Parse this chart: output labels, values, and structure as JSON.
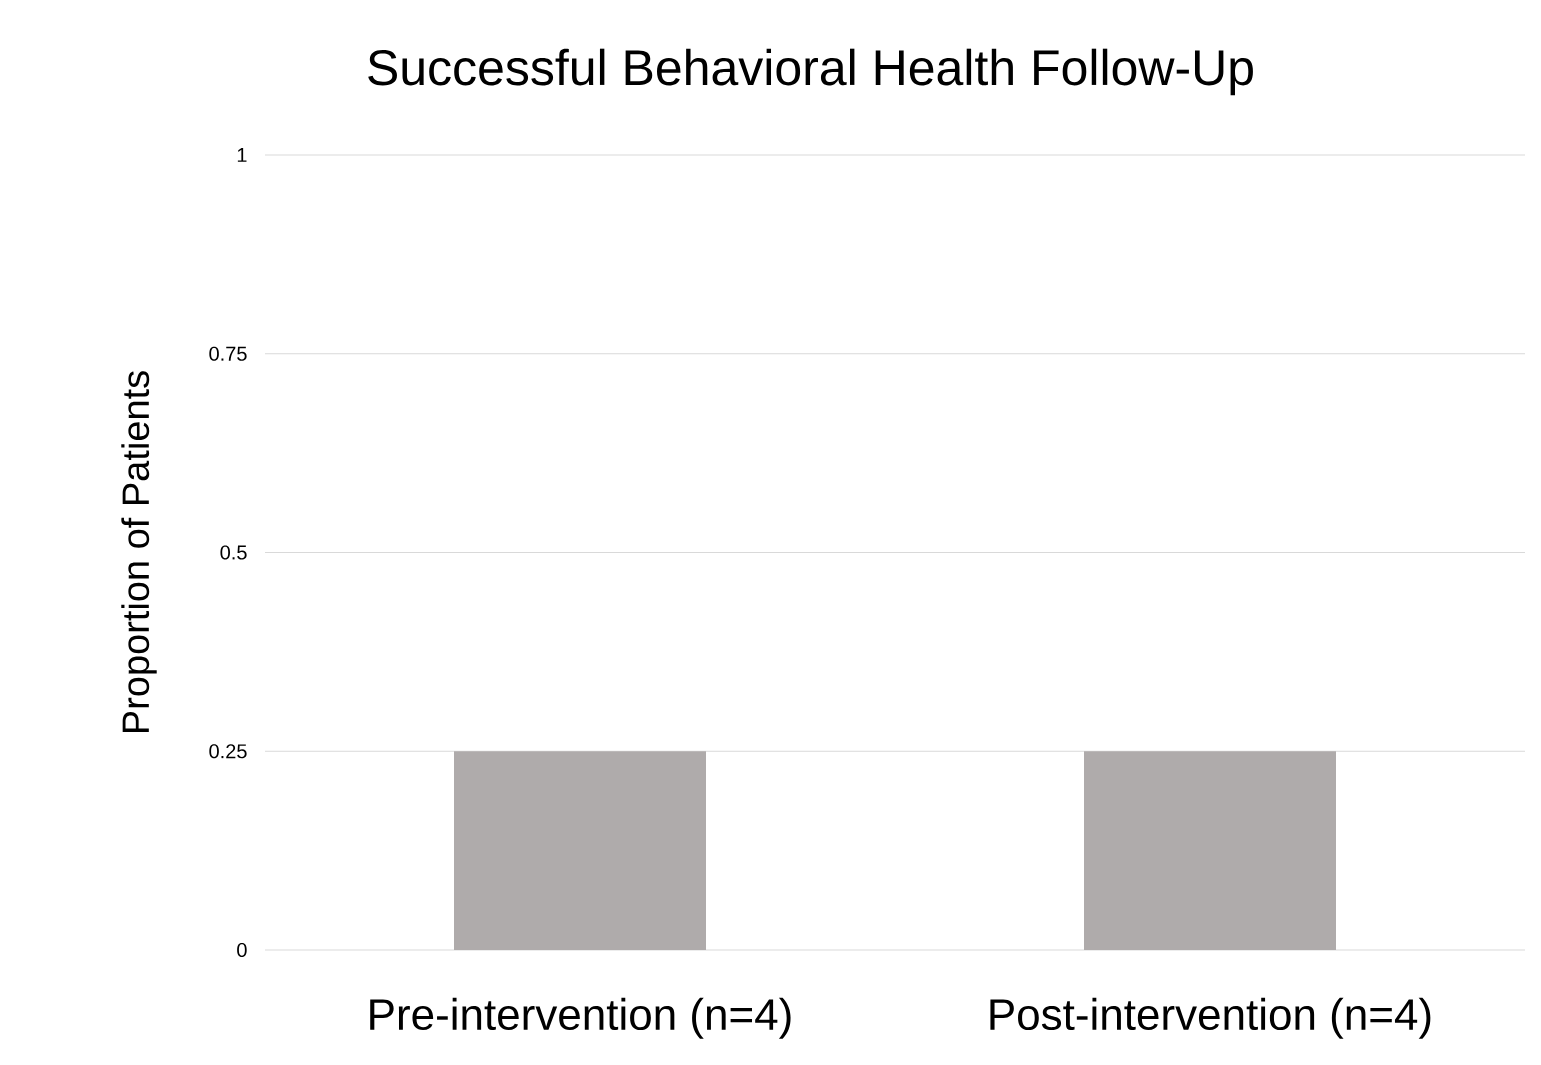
{
  "chart_data": {
    "type": "bar",
    "title": "Successful Behavioral Health Follow-Up",
    "ylabel": "Proportion of Patients",
    "categories": [
      "Pre-intervention (n=4)",
      "Post-intervention (n=4)"
    ],
    "values": [
      0.25,
      0.25
    ],
    "color": "#afabab",
    "ylim": [
      0,
      1
    ],
    "yticks": [
      0,
      0.25,
      0.5,
      0.75,
      1
    ],
    "grid": "y"
  }
}
